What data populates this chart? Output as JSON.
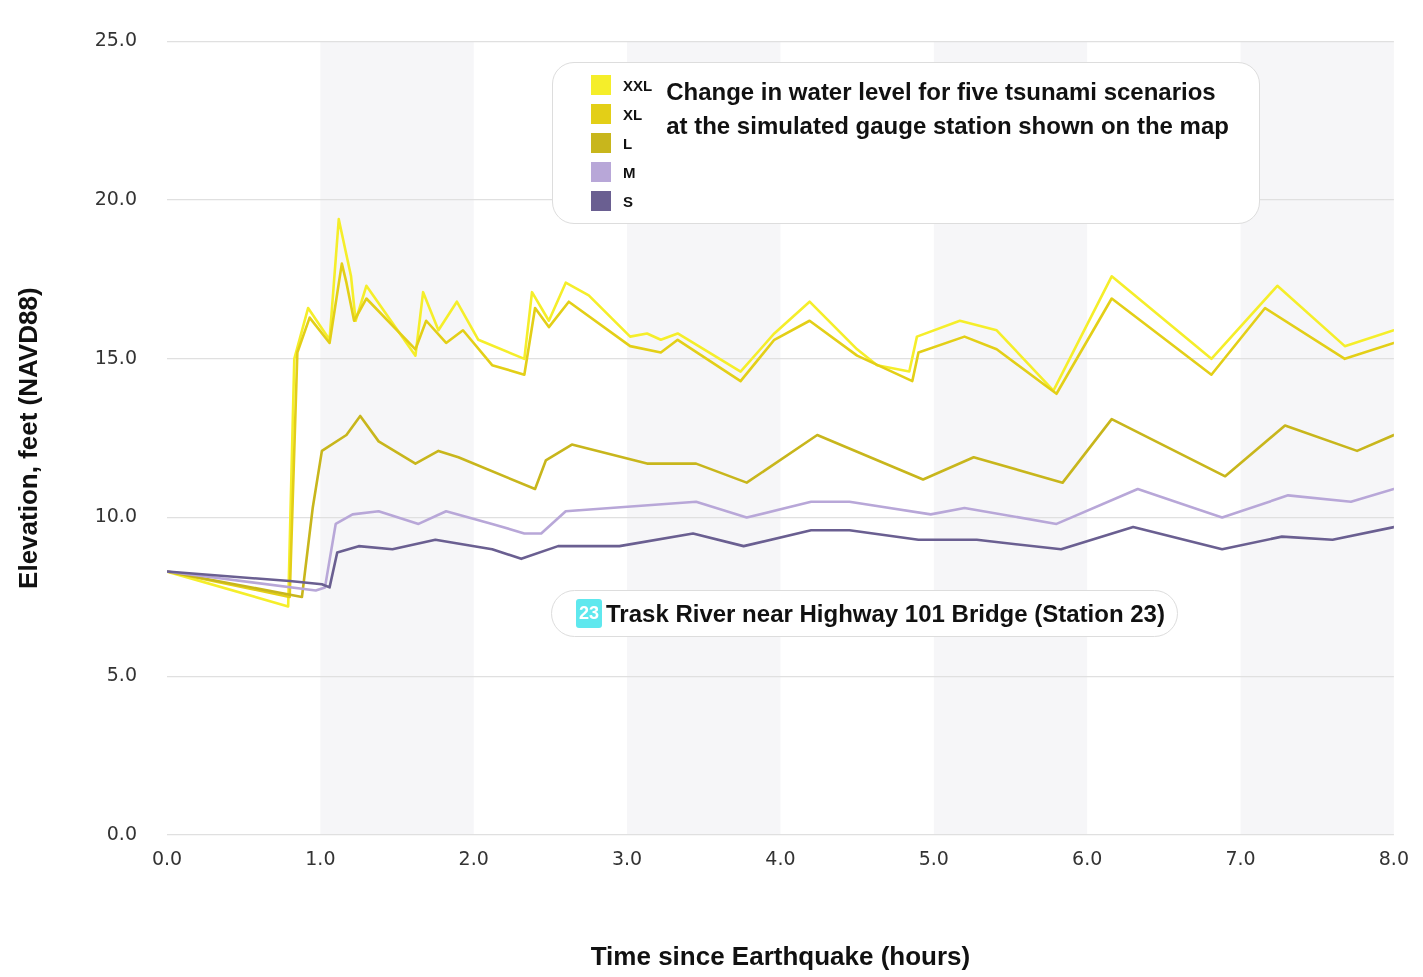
{
  "chart_data": {
    "type": "line",
    "title": "Change in water level for five tsunami scenarios at the simulated gauge station shown on the map",
    "xlabel": "Time since Earthquake (hours)",
    "ylabel": "Elevation, feet (NAVD88)",
    "annotations": [
      "23",
      "Trask River near Highway 101 Bridge (Station 23)"
    ],
    "xlim": [
      0,
      8
    ],
    "ylim": [
      0,
      25
    ],
    "xticks": [
      {
        "value": 0,
        "label": "0.0"
      },
      {
        "value": 1,
        "label": "1.0"
      },
      {
        "value": 2,
        "label": "2.0"
      },
      {
        "value": 3,
        "label": "3.0"
      },
      {
        "value": 4,
        "label": "4.0"
      },
      {
        "value": 5,
        "label": "5.0"
      },
      {
        "value": 6,
        "label": "6.0"
      },
      {
        "value": 7,
        "label": "7.0"
      },
      {
        "value": 8,
        "label": "8.0"
      }
    ],
    "yticks": [
      {
        "value": 0,
        "label": "0.0"
      },
      {
        "value": 5,
        "label": "5.0"
      },
      {
        "value": 10,
        "label": "10.0"
      },
      {
        "value": 15,
        "label": "15.0"
      },
      {
        "value": 20,
        "label": "20.0"
      },
      {
        "value": 25,
        "label": "25.0"
      }
    ],
    "grid": "y",
    "legend": "top",
    "marker": "none",
    "line_style": "solid",
    "bands": [
      {
        "axis": "x",
        "from": 1,
        "to": 2,
        "color": "#f6f6f8"
      },
      {
        "axis": "x",
        "from": 3,
        "to": 4,
        "color": "#f6f6f8"
      },
      {
        "axis": "x",
        "from": 5,
        "to": 6,
        "color": "#f6f6f8"
      },
      {
        "axis": "x",
        "from": 7,
        "to": 8,
        "color": "#f6f6f8"
      }
    ],
    "series": [
      {
        "name": "XXL",
        "color": "#f5ee2a",
        "x": [
          0,
          0.79,
          0.83,
          0.92,
          1.06,
          1.12,
          1.2,
          1.23,
          1.3,
          1.62,
          1.67,
          1.77,
          1.89,
          2.03,
          2.33,
          2.38,
          2.49,
          2.6,
          2.75,
          3.02,
          3.13,
          3.22,
          3.33,
          3.74,
          3.96,
          4.19,
          4.5,
          4.63,
          4.84,
          4.89,
          5.17,
          5.41,
          5.78,
          6.16,
          6.81,
          7.24,
          7.68,
          8
        ],
        "values": [
          8.3,
          7.2,
          15.0,
          16.6,
          15.6,
          19.4,
          17.6,
          16.2,
          17.3,
          15.1,
          17.1,
          15.9,
          16.8,
          15.6,
          15.0,
          17.1,
          16.2,
          17.4,
          17.0,
          15.7,
          15.8,
          15.6,
          15.8,
          14.6,
          15.8,
          16.8,
          15.3,
          14.8,
          14.6,
          15.7,
          16.2,
          15.9,
          14.0,
          17.6,
          15.0,
          17.3,
          15.4,
          15.9
        ]
      },
      {
        "name": "XL",
        "color": "#e3cf17",
        "x": [
          0,
          0.8,
          0.85,
          0.93,
          1.06,
          1.14,
          1.17,
          1.22,
          1.3,
          1.62,
          1.69,
          1.82,
          1.93,
          2.12,
          2.33,
          2.4,
          2.49,
          2.62,
          3.02,
          3.22,
          3.33,
          3.74,
          3.96,
          4.19,
          4.5,
          4.86,
          4.9,
          5.2,
          5.41,
          5.8,
          6.16,
          6.81,
          7.16,
          7.68,
          8
        ],
        "values": [
          8.3,
          7.5,
          15.2,
          16.3,
          15.5,
          18.0,
          17.4,
          16.2,
          16.9,
          15.3,
          16.2,
          15.5,
          15.9,
          14.8,
          14.5,
          16.6,
          16.0,
          16.8,
          15.4,
          15.2,
          15.6,
          14.3,
          15.6,
          16.2,
          15.1,
          14.3,
          15.2,
          15.7,
          15.3,
          13.9,
          16.9,
          14.5,
          16.6,
          15.0,
          15.5
        ]
      },
      {
        "name": "L",
        "color": "#c8b61c",
        "x": [
          0,
          0.88,
          0.95,
          1.01,
          1.17,
          1.26,
          1.38,
          1.62,
          1.77,
          1.9,
          2.4,
          2.47,
          2.64,
          3.13,
          3.45,
          3.78,
          4.24,
          4.93,
          5.26,
          5.84,
          6.16,
          6.9,
          7.29,
          7.76,
          8
        ],
        "values": [
          8.3,
          7.5,
          10.3,
          12.1,
          12.6,
          13.2,
          12.4,
          11.7,
          12.1,
          11.9,
          10.9,
          11.8,
          12.3,
          11.7,
          11.7,
          11.1,
          12.6,
          11.2,
          11.9,
          11.1,
          13.1,
          11.3,
          12.9,
          12.1,
          12.6
        ]
      },
      {
        "name": "M",
        "color": "#b8a7d8",
        "x": [
          0,
          0.97,
          1.03,
          1.1,
          1.21,
          1.38,
          1.64,
          1.82,
          2.12,
          2.33,
          2.44,
          2.6,
          3.45,
          3.78,
          4.2,
          4.45,
          4.98,
          5.2,
          5.8,
          6.33,
          6.88,
          7.31,
          7.72,
          8
        ],
        "values": [
          8.3,
          7.7,
          7.8,
          9.8,
          10.1,
          10.2,
          9.8,
          10.2,
          9.8,
          9.5,
          9.5,
          10.2,
          10.5,
          10.0,
          10.5,
          10.5,
          10.1,
          10.3,
          9.8,
          10.9,
          10.0,
          10.7,
          10.5,
          10.9
        ]
      },
      {
        "name": "S",
        "color": "#6a5f91",
        "x": [
          0,
          0.8,
          1.01,
          1.06,
          1.11,
          1.25,
          1.47,
          1.75,
          2.12,
          2.31,
          2.55,
          2.95,
          3.43,
          3.76,
          4.2,
          4.45,
          4.9,
          5.28,
          5.83,
          6.3,
          6.88,
          7.27,
          7.6,
          8
        ],
        "values": [
          8.3,
          8.0,
          7.9,
          7.8,
          8.9,
          9.1,
          9.0,
          9.3,
          9.0,
          8.7,
          9.1,
          9.1,
          9.5,
          9.1,
          9.6,
          9.6,
          9.3,
          9.3,
          9.0,
          9.7,
          9.0,
          9.4,
          9.3,
          9.7
        ]
      }
    ]
  }
}
